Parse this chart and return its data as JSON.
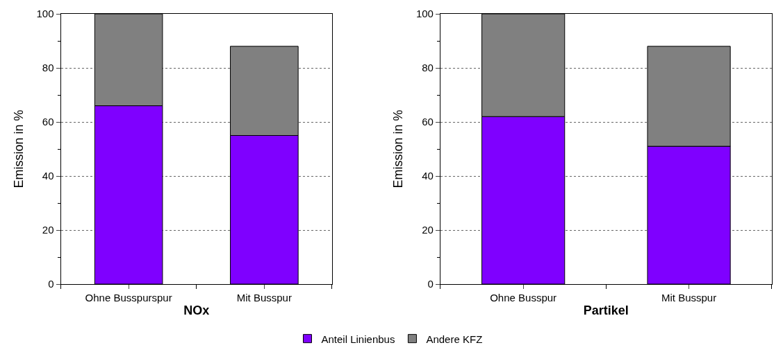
{
  "chart_data": [
    {
      "type": "bar",
      "stacked": true,
      "xlabel": "NOx",
      "ylabel": "Emission in %",
      "categories": [
        "Ohne Busspurspur",
        "Mit Busspur"
      ],
      "series": [
        {
          "name": "Anteil Linienbus",
          "color": "#7f00ff",
          "values": [
            66,
            55
          ]
        },
        {
          "name": "Andere KFZ",
          "color": "#808080",
          "values": [
            34,
            33
          ]
        }
      ],
      "ylim": [
        0,
        100
      ],
      "yticks": [
        0,
        20,
        40,
        60,
        80,
        100
      ],
      "grid": "y",
      "legend": "bottom"
    },
    {
      "type": "bar",
      "stacked": true,
      "xlabel": "Partikel",
      "ylabel": "Emission in %",
      "categories": [
        "Ohne Busspur",
        "Mit Busspur"
      ],
      "series": [
        {
          "name": "Anteil Linienbus",
          "color": "#7f00ff",
          "values": [
            62,
            51
          ]
        },
        {
          "name": "Andere KFZ",
          "color": "#808080",
          "values": [
            38,
            37
          ]
        }
      ],
      "ylim": [
        0,
        100
      ],
      "yticks": [
        0,
        20,
        40,
        60,
        80,
        100
      ],
      "grid": "y",
      "legend": "bottom"
    }
  ]
}
